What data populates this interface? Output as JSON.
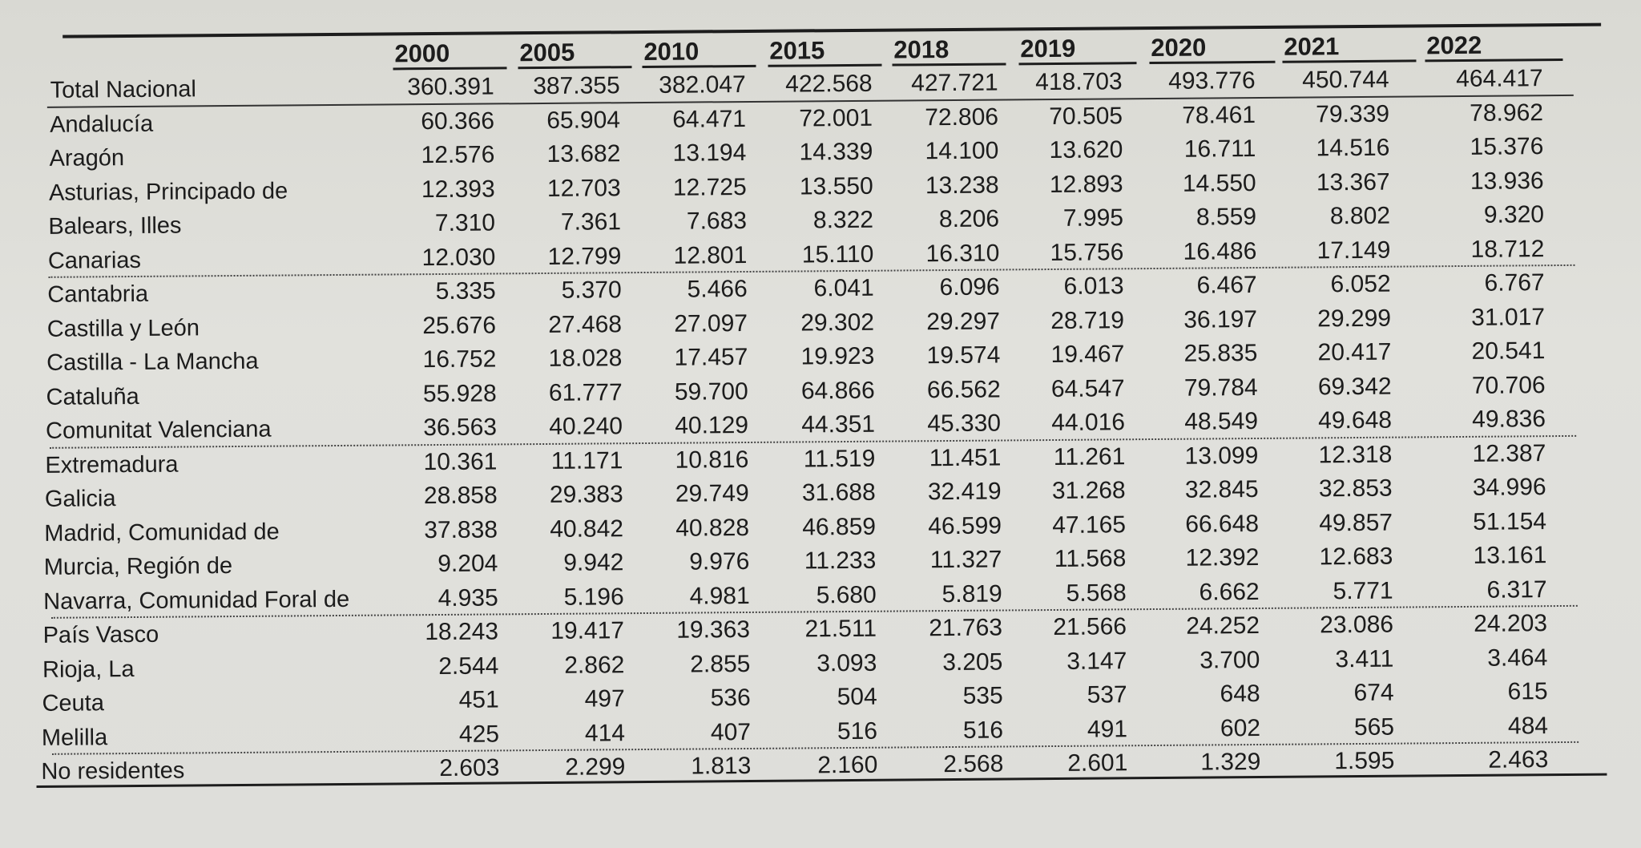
{
  "years": [
    "2000",
    "2005",
    "2010",
    "2015",
    "2018",
    "2019",
    "2020",
    "2021",
    "2022"
  ],
  "rows": [
    {
      "name": "Total Nacional",
      "values": [
        "360.391",
        "387.355",
        "382.047",
        "422.568",
        "427.721",
        "418.703",
        "493.776",
        "450.744",
        "464.417"
      ]
    },
    {
      "name": "Andalucía",
      "values": [
        "60.366",
        "65.904",
        "64.471",
        "72.001",
        "72.806",
        "70.505",
        "78.461",
        "79.339",
        "78.962"
      ]
    },
    {
      "name": "Aragón",
      "values": [
        "12.576",
        "13.682",
        "13.194",
        "14.339",
        "14.100",
        "13.620",
        "16.711",
        "14.516",
        "15.376"
      ]
    },
    {
      "name": "Asturias, Principado de",
      "values": [
        "12.393",
        "12.703",
        "12.725",
        "13.550",
        "13.238",
        "12.893",
        "14.550",
        "13.367",
        "13.936"
      ]
    },
    {
      "name": "Balears, Illes",
      "values": [
        "7.310",
        "7.361",
        "7.683",
        "8.322",
        "8.206",
        "7.995",
        "8.559",
        "8.802",
        "9.320"
      ]
    },
    {
      "name": "Canarias",
      "values": [
        "12.030",
        "12.799",
        "12.801",
        "15.110",
        "16.310",
        "15.756",
        "16.486",
        "17.149",
        "18.712"
      ]
    },
    {
      "name": "Cantabria",
      "values": [
        "5.335",
        "5.370",
        "5.466",
        "6.041",
        "6.096",
        "6.013",
        "6.467",
        "6.052",
        "6.767"
      ]
    },
    {
      "name": "Castilla y León",
      "values": [
        "25.676",
        "27.468",
        "27.097",
        "29.302",
        "29.297",
        "28.719",
        "36.197",
        "29.299",
        "31.017"
      ]
    },
    {
      "name": "Castilla - La Mancha",
      "values": [
        "16.752",
        "18.028",
        "17.457",
        "19.923",
        "19.574",
        "19.467",
        "25.835",
        "20.417",
        "20.541"
      ]
    },
    {
      "name": "Cataluña",
      "values": [
        "55.928",
        "61.777",
        "59.700",
        "64.866",
        "66.562",
        "64.547",
        "79.784",
        "69.342",
        "70.706"
      ]
    },
    {
      "name": "Comunitat Valenciana",
      "values": [
        "36.563",
        "40.240",
        "40.129",
        "44.351",
        "45.330",
        "44.016",
        "48.549",
        "49.648",
        "49.836"
      ]
    },
    {
      "name": "Extremadura",
      "values": [
        "10.361",
        "11.171",
        "10.816",
        "11.519",
        "11.451",
        "11.261",
        "13.099",
        "12.318",
        "12.387"
      ]
    },
    {
      "name": "Galicia",
      "values": [
        "28.858",
        "29.383",
        "29.749",
        "31.688",
        "32.419",
        "31.268",
        "32.845",
        "32.853",
        "34.996"
      ]
    },
    {
      "name": "Madrid, Comunidad de",
      "values": [
        "37.838",
        "40.842",
        "40.828",
        "46.859",
        "46.599",
        "47.165",
        "66.648",
        "49.857",
        "51.154"
      ]
    },
    {
      "name": "Murcia, Región de",
      "values": [
        "9.204",
        "9.942",
        "9.976",
        "11.233",
        "11.327",
        "11.568",
        "12.392",
        "12.683",
        "13.161"
      ]
    },
    {
      "name": "Navarra, Comunidad Foral de",
      "values": [
        "4.935",
        "5.196",
        "4.981",
        "5.680",
        "5.819",
        "5.568",
        "6.662",
        "5.771",
        "6.317"
      ]
    },
    {
      "name": "País Vasco",
      "values": [
        "18.243",
        "19.417",
        "19.363",
        "21.511",
        "21.763",
        "21.566",
        "24.252",
        "23.086",
        "24.203"
      ]
    },
    {
      "name": "Rioja, La",
      "values": [
        "2.544",
        "2.862",
        "2.855",
        "3.093",
        "3.205",
        "3.147",
        "3.700",
        "3.411",
        "3.464"
      ]
    },
    {
      "name": "Ceuta",
      "values": [
        "451",
        "497",
        "536",
        "504",
        "535",
        "537",
        "648",
        "674",
        "615"
      ]
    },
    {
      "name": "Melilla",
      "values": [
        "425",
        "414",
        "407",
        "516",
        "516",
        "491",
        "602",
        "565",
        "484"
      ]
    },
    {
      "name": "No residentes",
      "values": [
        "2.603",
        "2.299",
        "1.813",
        "2.160",
        "2.568",
        "2.601",
        "1.329",
        "1.595",
        "2.463"
      ]
    }
  ]
}
